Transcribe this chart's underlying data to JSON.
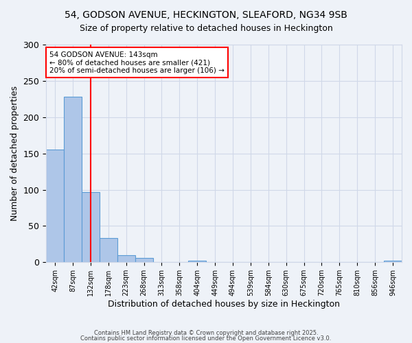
{
  "title_line1": "54, GODSON AVENUE, HECKINGTON, SLEAFORD, NG34 9SB",
  "title_line2": "Size of property relative to detached houses in Heckington",
  "xlabel": "Distribution of detached houses by size in Heckington",
  "ylabel": "Number of detached properties",
  "bar_values": [
    155,
    228,
    97,
    33,
    10,
    6,
    0,
    0,
    2,
    0,
    0,
    0,
    0,
    0,
    0,
    0,
    0,
    0,
    0,
    2
  ],
  "bar_labels": [
    "42sqm",
    "87sqm",
    "132sqm",
    "178sqm",
    "223sqm",
    "268sqm",
    "313sqm",
    "358sqm",
    "404sqm",
    "449sqm",
    "494sqm",
    "539sqm",
    "584sqm",
    "630sqm",
    "675sqm",
    "720sqm",
    "765sqm",
    "810sqm",
    "856sqm",
    "946sqm"
  ],
  "bar_color": "#aec6e8",
  "bar_edge_color": "#5b9bd5",
  "grid_color": "#d0d8e8",
  "background_color": "#eef2f8",
  "red_line_x": 2,
  "annotation_title": "54 GODSON AVENUE: 143sqm",
  "annotation_line2": "← 80% of detached houses are smaller (421)",
  "annotation_line3": "20% of semi-detached houses are larger (106) →",
  "footer_line1": "Contains HM Land Registry data © Crown copyright and database right 2025.",
  "footer_line2": "Contains public sector information licensed under the Open Government Licence v3.0.",
  "ylim": [
    0,
    300
  ],
  "yticks": [
    0,
    50,
    100,
    150,
    200,
    250,
    300
  ]
}
